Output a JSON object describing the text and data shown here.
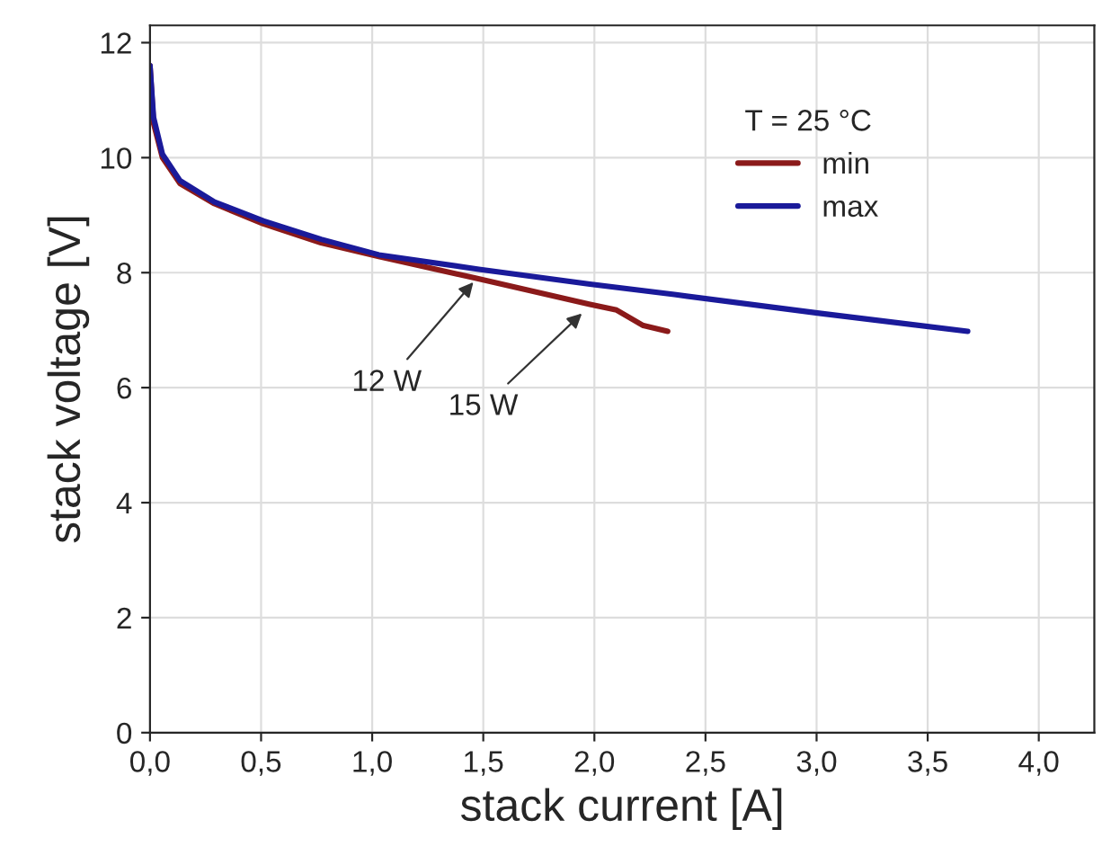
{
  "chart_data": {
    "type": "line",
    "xlabel": "stack current [A]",
    "ylabel": "stack voltage [V]",
    "legend_title": "T = 25 °C",
    "series": [
      {
        "name": "min",
        "color": "#8b1a1a",
        "x": [
          0,
          0.016,
          0.056,
          0.135,
          0.29,
          0.51,
          0.77,
          1.03,
          1.46,
          1.98,
          2.1,
          2.22,
          2.33
        ],
        "values": [
          11.6,
          10.6,
          10.0,
          9.55,
          9.2,
          8.85,
          8.52,
          8.28,
          7.91,
          7.45,
          7.35,
          7.08,
          6.98
        ]
      },
      {
        "name": "max",
        "color": "#1a1a9a",
        "x": [
          0,
          0.016,
          0.056,
          0.135,
          0.29,
          0.51,
          0.77,
          1.03,
          1.48,
          1.98,
          2.36,
          3.02,
          3.68
        ],
        "values": [
          11.6,
          10.7,
          10.06,
          9.6,
          9.23,
          8.9,
          8.58,
          8.31,
          8.06,
          7.8,
          7.62,
          7.29,
          6.98
        ]
      }
    ],
    "annotations": [
      {
        "text": "12 W",
        "x": 1.47,
        "y": 7.9
      },
      {
        "text": "15 W",
        "x": 1.96,
        "y": 7.35
      }
    ],
    "xlim": [
      0,
      4.25
    ],
    "ylim": [
      0,
      12.3
    ],
    "xticks": [
      {
        "value": 0,
        "label": "0,0"
      },
      {
        "value": 0.5,
        "label": "0,5"
      },
      {
        "value": 1,
        "label": "1,0"
      },
      {
        "value": 1.5,
        "label": "1,5"
      },
      {
        "value": 2,
        "label": "2,0"
      },
      {
        "value": 2.5,
        "label": "2,5"
      },
      {
        "value": 3,
        "label": "3,0"
      },
      {
        "value": 3.5,
        "label": "3,5"
      },
      {
        "value": 4,
        "label": "4,0"
      }
    ],
    "yticks": [
      0,
      2,
      4,
      6,
      8,
      10,
      12
    ],
    "grid": true,
    "legend": "top right"
  }
}
